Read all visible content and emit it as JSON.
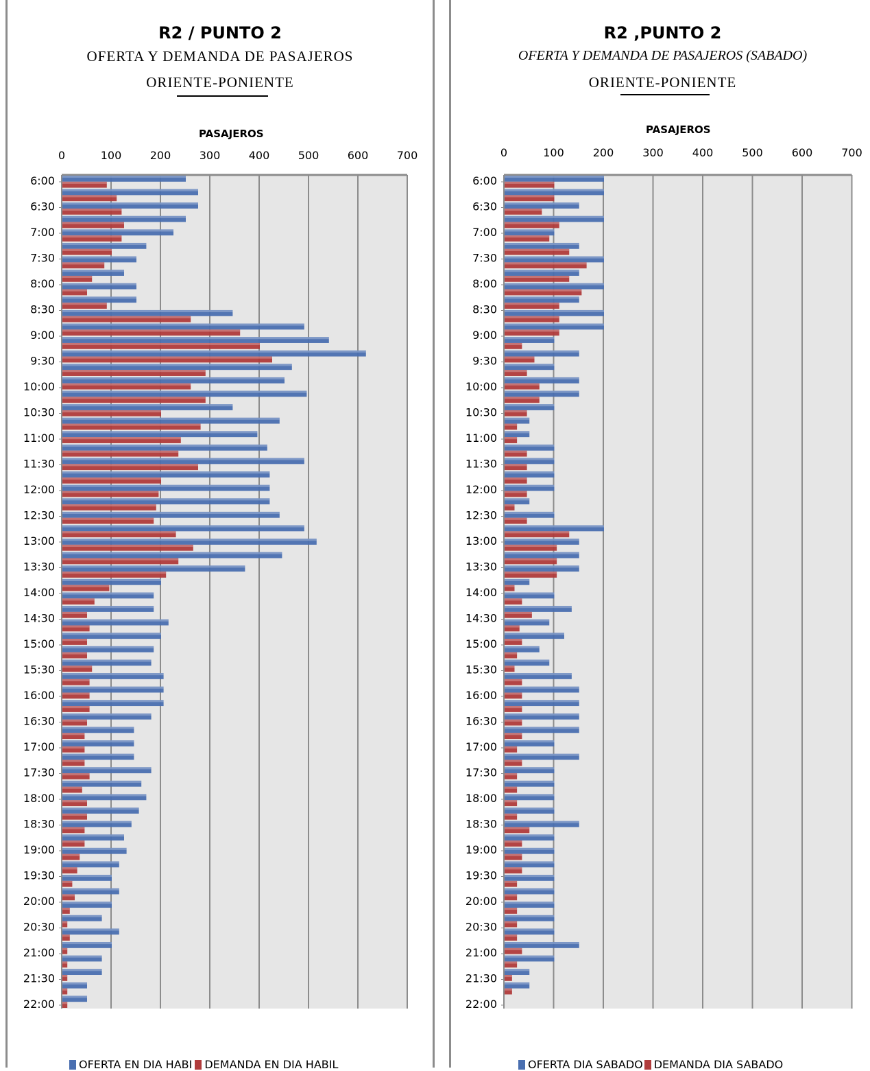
{
  "chart_data": [
    {
      "type": "bar",
      "orientation": "horizontal",
      "title": "R2 / PUNTO 2",
      "subtitle": "OFERTA Y DEMANDA DE PASAJEROS",
      "direction": "ORIENTE-PONIENTE",
      "xlabel": "PASAJEROS",
      "xlim": [
        0,
        700
      ],
      "xticks": [
        "0",
        "100",
        "200",
        "300",
        "400",
        "500",
        "600",
        "700"
      ],
      "tick_labels": [
        "6:00",
        "6:30",
        "7:00",
        "7:30",
        "8:00",
        "8:30",
        "9:00",
        "9:30",
        "10:00",
        "10:30",
        "11:00",
        "11:30",
        "12:00",
        "12:30",
        "13:00",
        "13:30",
        "14:00",
        "14:30",
        "15:00",
        "15:30",
        "16:00",
        "16:30",
        "17:00",
        "17:30",
        "18:00",
        "18:30",
        "19:00",
        "19:30",
        "20:00",
        "20:30",
        "21:00",
        "21:30",
        "22:00"
      ],
      "grid": true,
      "legend_position": "bottom",
      "series": [
        {
          "name": "OFERTA EN DIA HABIL",
          "legend_text": "OFERTA EN DIA HABI",
          "color": "#4a6fb0",
          "values": [
            250,
            275,
            275,
            250,
            225,
            170,
            150,
            125,
            150,
            150,
            345,
            490,
            540,
            615,
            465,
            450,
            495,
            345,
            440,
            395,
            415,
            490,
            420,
            420,
            420,
            440,
            490,
            515,
            445,
            370,
            200,
            185,
            185,
            215,
            200,
            185,
            180,
            205,
            205,
            205,
            180,
            145,
            145,
            145,
            180,
            160,
            170,
            155,
            140,
            125,
            130,
            115,
            100,
            115,
            100,
            80,
            115,
            100,
            80,
            80,
            50,
            50
          ]
        },
        {
          "name": "DEMANDA EN DIA HABIL",
          "legend_text": "DEMANDA EN DIA HABIL",
          "color": "#b03b3b",
          "values": [
            90,
            110,
            120,
            125,
            120,
            100,
            85,
            60,
            50,
            90,
            260,
            360,
            400,
            425,
            290,
            260,
            290,
            200,
            280,
            240,
            235,
            275,
            200,
            195,
            190,
            185,
            230,
            265,
            235,
            210,
            95,
            65,
            50,
            55,
            50,
            50,
            60,
            55,
            55,
            55,
            50,
            45,
            45,
            45,
            55,
            40,
            50,
            50,
            45,
            45,
            35,
            30,
            20,
            25,
            15,
            10,
            15,
            10,
            10,
            10,
            10,
            10
          ]
        }
      ]
    },
    {
      "type": "bar",
      "orientation": "horizontal",
      "title": "R2 ,PUNTO 2",
      "subtitle": "OFERTA Y DEMANDA DE PASAJEROS (SABADO)",
      "direction": "ORIENTE-PONIENTE",
      "xlabel": "PASAJEROS",
      "xlim": [
        0,
        700
      ],
      "xticks": [
        "0",
        "100",
        "200",
        "300",
        "400",
        "500",
        "600",
        "700"
      ],
      "tick_labels": [
        "6:00",
        "6:30",
        "7:00",
        "7:30",
        "8:00",
        "8:30",
        "9:00",
        "9:30",
        "10:00",
        "10:30",
        "11:00",
        "11:30",
        "12:00",
        "12:30",
        "13:00",
        "13:30",
        "14:00",
        "14:30",
        "15:00",
        "15:30",
        "16:00",
        "16:30",
        "17:00",
        "17:30",
        "18:00",
        "18:30",
        "19:00",
        "19:30",
        "20:00",
        "20:30",
        "21:00",
        "21:30",
        "22:00"
      ],
      "grid": true,
      "legend_position": "bottom",
      "series": [
        {
          "name": "OFERTA DIA SABADO",
          "legend_text": "OFERTA DIA SABADO",
          "color": "#4a6fb0",
          "values": [
            200,
            200,
            150,
            200,
            100,
            150,
            200,
            150,
            200,
            150,
            200,
            200,
            100,
            150,
            100,
            150,
            150,
            100,
            50,
            50,
            100,
            100,
            100,
            100,
            50,
            100,
            200,
            150,
            150,
            150,
            50,
            100,
            135,
            90,
            120,
            70,
            90,
            135,
            150,
            150,
            150,
            150,
            100,
            150,
            100,
            100,
            100,
            100,
            150,
            100,
            100,
            100,
            100,
            100,
            100,
            100,
            100,
            150,
            100,
            50,
            50,
            0
          ]
        },
        {
          "name": "DEMANDA DIA SABADO",
          "legend_text": "DEMANDA DIA SABADO",
          "color": "#b03b3b",
          "values": [
            100,
            100,
            75,
            110,
            90,
            130,
            165,
            130,
            155,
            110,
            110,
            110,
            35,
            60,
            45,
            70,
            70,
            45,
            25,
            25,
            45,
            45,
            45,
            45,
            20,
            45,
            130,
            105,
            105,
            105,
            20,
            35,
            55,
            30,
            35,
            25,
            20,
            35,
            35,
            35,
            35,
            35,
            25,
            35,
            25,
            25,
            25,
            25,
            50,
            35,
            35,
            35,
            25,
            25,
            25,
            25,
            25,
            35,
            25,
            15,
            15,
            0
          ]
        }
      ]
    }
  ]
}
